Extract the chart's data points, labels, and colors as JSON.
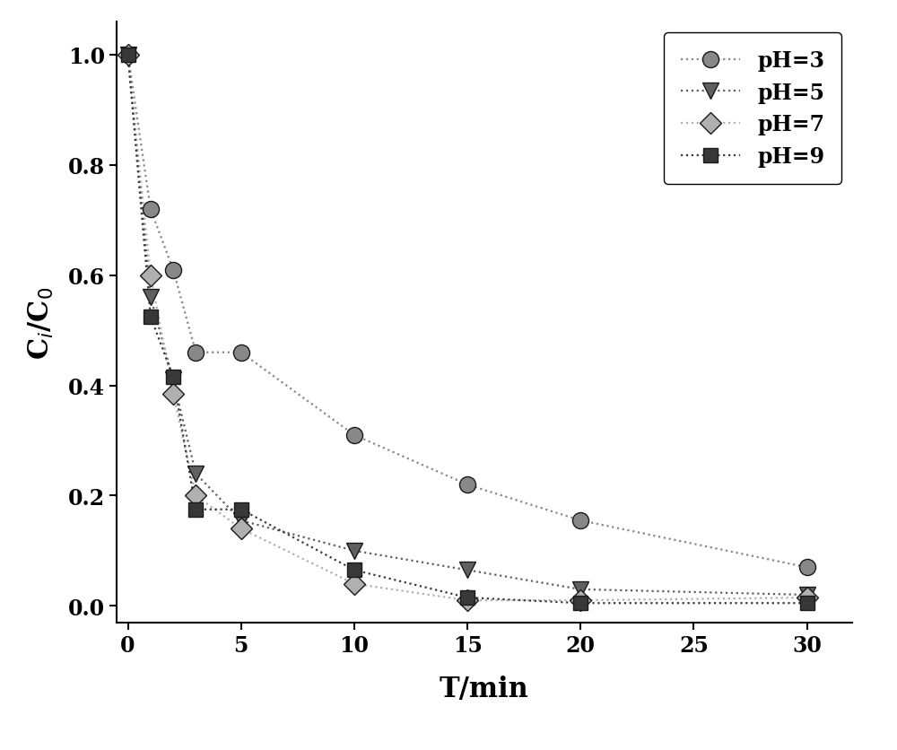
{
  "series": [
    {
      "label": "pH=3",
      "color": "#888888",
      "marker": "o",
      "marker_size": 13,
      "x": [
        0,
        1,
        2,
        3,
        5,
        10,
        15,
        20,
        30
      ],
      "y": [
        1.0,
        0.72,
        0.61,
        0.46,
        0.46,
        0.31,
        0.22,
        0.155,
        0.07
      ]
    },
    {
      "label": "pH=5",
      "color": "#606060",
      "marker": "v",
      "marker_size": 13,
      "x": [
        0,
        1,
        2,
        3,
        5,
        10,
        15,
        20,
        30
      ],
      "y": [
        1.0,
        0.56,
        0.41,
        0.24,
        0.155,
        0.1,
        0.065,
        0.03,
        0.02
      ]
    },
    {
      "label": "pH=7",
      "color": "#b0b0b0",
      "marker": "D",
      "marker_size": 12,
      "x": [
        0,
        1,
        2,
        3,
        5,
        10,
        15,
        20,
        30
      ],
      "y": [
        1.0,
        0.6,
        0.385,
        0.2,
        0.14,
        0.04,
        0.01,
        0.01,
        0.015
      ]
    },
    {
      "label": "pH=9",
      "color": "#383838",
      "marker": "s",
      "marker_size": 12,
      "x": [
        0,
        1,
        2,
        3,
        5,
        10,
        15,
        20,
        30
      ],
      "y": [
        1.0,
        0.525,
        0.415,
        0.175,
        0.175,
        0.065,
        0.015,
        0.005,
        0.005
      ]
    }
  ],
  "xlabel": "T/min",
  "ylabel": "C$_i$/C$_0$",
  "xlim": [
    -0.5,
    32
  ],
  "ylim": [
    -0.03,
    1.06
  ],
  "xticks": [
    0,
    5,
    10,
    15,
    20,
    25,
    30
  ],
  "yticks": [
    0.0,
    0.2,
    0.4,
    0.6,
    0.8,
    1.0
  ],
  "legend_loc": "upper right",
  "figure_width": 10.0,
  "figure_height": 8.37,
  "dpi": 100
}
